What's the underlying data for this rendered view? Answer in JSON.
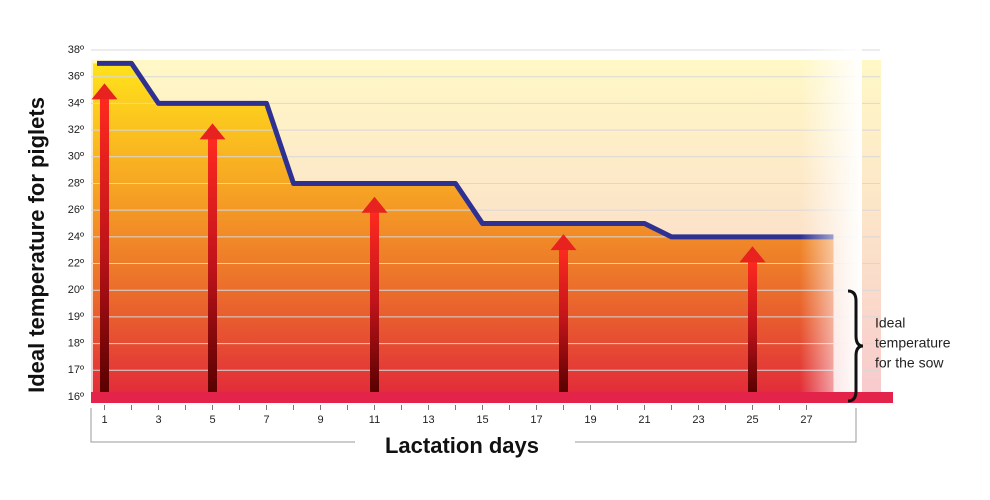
{
  "chart_data": {
    "type": "line",
    "y_label": "Ideal temperature for piglets",
    "x_label": "Lactation days",
    "annotation": [
      "Ideal",
      "temperature",
      "for the sow"
    ],
    "x": [
      1,
      2,
      3,
      7,
      8,
      14,
      15,
      21,
      22,
      28
    ],
    "series": [
      {
        "color": "#2e3192",
        "values": [
          37,
          37,
          34,
          34,
          28,
          28,
          25,
          25,
          24,
          24
        ]
      }
    ],
    "arrows": {
      "color": "#e8231f",
      "x": [
        1,
        5,
        11,
        18,
        25
      ],
      "values": [
        35.5,
        32.5,
        27,
        24.2,
        23.3
      ]
    },
    "xlim": [
      0.5,
      28.5
    ],
    "xticks": [
      1,
      3,
      5,
      7,
      9,
      11,
      13,
      15,
      17,
      19,
      21,
      23,
      25,
      27
    ],
    "ylim": [
      16,
      38
    ],
    "yticks": [
      {
        "value": 38,
        "label": "38º"
      },
      {
        "value": 36,
        "label": "36º"
      },
      {
        "value": 34,
        "label": "34º"
      },
      {
        "value": 32,
        "label": "32º"
      },
      {
        "value": 30,
        "label": "30º"
      },
      {
        "value": 28,
        "label": "28º"
      },
      {
        "value": 26,
        "label": "26º"
      },
      {
        "value": 24,
        "label": "24º"
      },
      {
        "value": 22,
        "label": "22º"
      },
      {
        "value": 20,
        "label": "20º"
      },
      {
        "value": 19,
        "label": "19º"
      },
      {
        "value": 18,
        "label": "18º"
      },
      {
        "value": 17,
        "label": "17º"
      },
      {
        "value": 16,
        "label": "16º"
      }
    ],
    "grid": true
  }
}
